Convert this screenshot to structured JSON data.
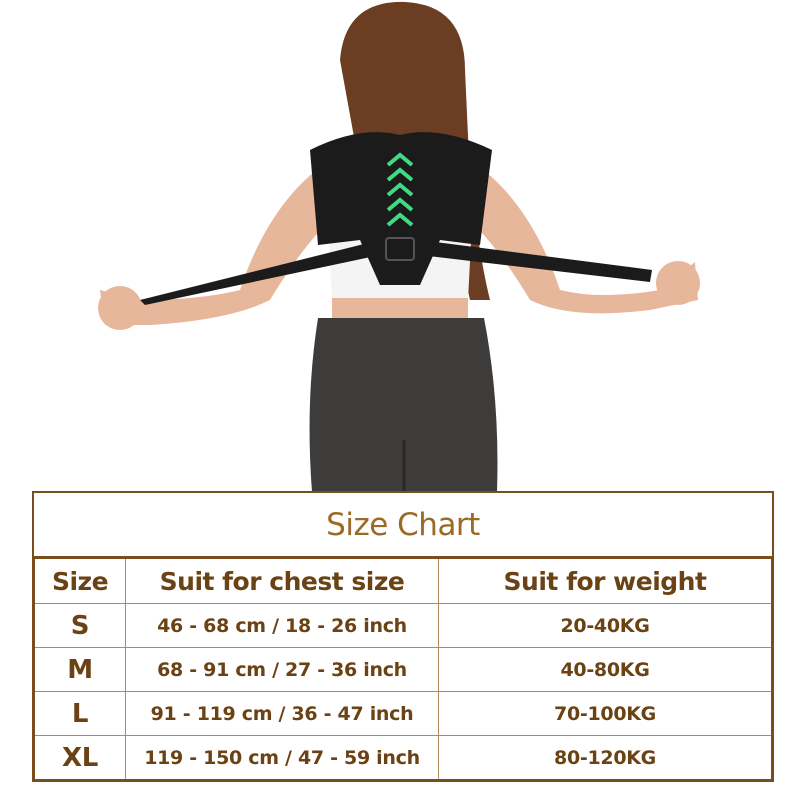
{
  "size_chart": {
    "title": "Size Chart",
    "headers": [
      "Size",
      "Suit for chest size",
      "Suit for weight"
    ],
    "rows": [
      {
        "size": "S",
        "chest": "46 - 68 cm / 18 - 26 inch",
        "weight": "20-40KG"
      },
      {
        "size": "M",
        "chest": "68 - 91 cm / 27 - 36 inch",
        "weight": "40-80KG"
      },
      {
        "size": "L",
        "chest": "91 - 119 cm / 36 - 47 inch",
        "weight": "70-100KG"
      },
      {
        "size": "XL",
        "chest": "119 - 150 cm / 47 - 59 inch",
        "weight": "80-120KG"
      }
    ]
  },
  "colors": {
    "border": "#7a4e1c",
    "title": "#9a6a26",
    "text": "#6b4214",
    "brace_accent": "#3ddc84"
  }
}
